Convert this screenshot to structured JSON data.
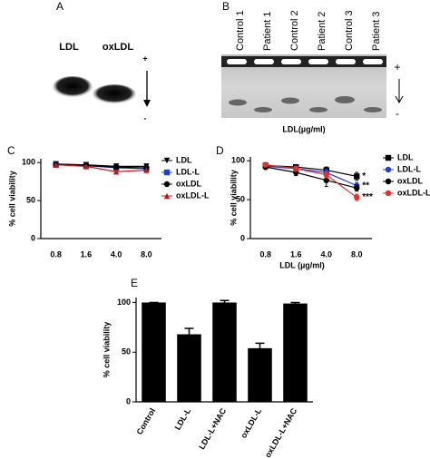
{
  "panels": {
    "a": {
      "label": "A",
      "lanes": [
        "LDL",
        "oxLDL"
      ],
      "plus": "+",
      "minus": "-"
    },
    "b": {
      "label": "B",
      "lanes": [
        "Control 1",
        "Patient 1",
        "Control 2",
        "Patient 2",
        "Control 3",
        "Patient 3"
      ],
      "plus": "+",
      "minus": "-",
      "caption": "LDL(µg/ml)"
    }
  },
  "chart_data": [
    {
      "type": "line",
      "panel": "C",
      "ylabel": "% cell viability",
      "categories": [
        "0.8",
        "1.6",
        "4.0",
        "8.0"
      ],
      "ylim": [
        0,
        105
      ],
      "yticks": [
        0,
        50,
        100
      ],
      "series": [
        {
          "name": "LDL",
          "color": "#000000",
          "marker": "triangle-down",
          "values": [
            98,
            97,
            95,
            95
          ]
        },
        {
          "name": "LDL-L",
          "color": "#2040d0",
          "marker": "square",
          "values": [
            97,
            96,
            93,
            92
          ]
        },
        {
          "name": "oxLDL",
          "color": "#000000",
          "marker": "circle",
          "values": [
            97,
            96,
            94,
            93
          ]
        },
        {
          "name": "oxLDL-L",
          "color": "#c01818",
          "marker": "triangle-up",
          "values": [
            97,
            95,
            88,
            90
          ]
        }
      ]
    },
    {
      "type": "line",
      "panel": "D",
      "ylabel": "% cell viability",
      "xlabel": "LDL (µg/ml)",
      "categories": [
        "0.8",
        "1.6",
        "4.0",
        "8.0"
      ],
      "ylim": [
        0,
        105
      ],
      "yticks": [
        0,
        50,
        100
      ],
      "series": [
        {
          "name": "LDL",
          "color": "#000000",
          "marker": "square",
          "values": [
            94,
            92,
            88,
            80
          ],
          "errors": [
            3,
            3,
            4,
            5
          ]
        },
        {
          "name": "LDL-L",
          "color": "#2040d0",
          "marker": "circle",
          "values": [
            93,
            90,
            85,
            68
          ],
          "errors": [
            3,
            3,
            4,
            4
          ]
        },
        {
          "name": "oxLDL",
          "color": "#000000",
          "marker": "circle",
          "values": [
            92,
            85,
            75,
            65
          ],
          "errors": [
            3,
            4,
            8,
            4
          ]
        },
        {
          "name": "oxLDL-L",
          "color": "#e03030",
          "marker": "circle",
          "values": [
            95,
            90,
            82,
            53
          ],
          "errors": [
            2,
            3,
            4,
            4
          ]
        }
      ],
      "annotations": [
        {
          "text": "*",
          "color": "#000000"
        },
        {
          "text": "**",
          "color": "#2040d0"
        },
        {
          "text": "",
          "color": "#000000"
        },
        {
          "text": "***",
          "color": "#e03030"
        }
      ]
    },
    {
      "type": "bar",
      "panel": "E",
      "ylabel": "% cell viability",
      "color": "#000000",
      "categories": [
        "Control",
        "LDL-L",
        "LDL-L+NAC",
        "oxLDL-L",
        "oxLDL-L+NAC"
      ],
      "values": [
        100,
        68,
        100,
        54,
        99
      ],
      "errors": [
        0,
        6,
        2,
        5,
        1
      ],
      "ylim": [
        0,
        105
      ],
      "yticks": [
        0,
        50,
        100
      ]
    }
  ]
}
